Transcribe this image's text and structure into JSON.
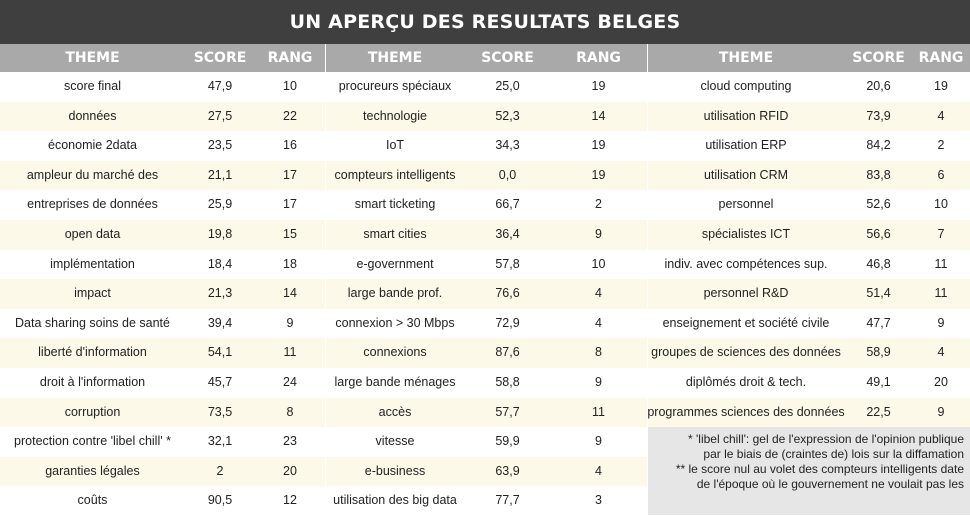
{
  "title": "UN APERÇU DES RESULTATS BELGES",
  "headers": {
    "theme": "THEME",
    "score": "SCORE",
    "rang": "RANG"
  },
  "colors": {
    "title_bg": "#3f3f3f",
    "header_bg": "#a9a9a9",
    "row_alt": "#fdf9e8",
    "note_bg": "#e6e6e6"
  },
  "columns": [
    [
      {
        "theme": "score final",
        "score": "47,9",
        "rang": "10"
      },
      {
        "theme": "données",
        "score": "27,5",
        "rang": "22"
      },
      {
        "theme": "économie 2data",
        "score": "23,5",
        "rang": "16"
      },
      {
        "theme": "ampleur du marché des",
        "score": "21,1",
        "rang": "17"
      },
      {
        "theme": "entreprises de données",
        "score": "25,9",
        "rang": "17"
      },
      {
        "theme": "open data",
        "score": "19,8",
        "rang": "15"
      },
      {
        "theme": "implémentation",
        "score": "18,4",
        "rang": "18"
      },
      {
        "theme": "impact",
        "score": "21,3",
        "rang": "14"
      },
      {
        "theme": "Data sharing soins de santé",
        "score": "39,4",
        "rang": "9"
      },
      {
        "theme": "liberté d'information",
        "score": "54,1",
        "rang": "11"
      },
      {
        "theme": "droit à l'information",
        "score": "45,7",
        "rang": "24"
      },
      {
        "theme": "corruption",
        "score": "73,5",
        "rang": "8"
      },
      {
        "theme": "protection contre 'libel chill' *",
        "score": "32,1",
        "rang": "23"
      },
      {
        "theme": "garanties légales",
        "score": "2",
        "rang": "20"
      },
      {
        "theme": "coûts",
        "score": "90,5",
        "rang": "12"
      }
    ],
    [
      {
        "theme": "procureurs spéciaux",
        "score": "25,0",
        "rang": "19"
      },
      {
        "theme": "technologie",
        "score": "52,3",
        "rang": "14"
      },
      {
        "theme": "IoT",
        "score": "34,3",
        "rang": "19"
      },
      {
        "theme": "compteurs intelligents",
        "score": "0,0",
        "rang": "19"
      },
      {
        "theme": "smart ticketing",
        "score": "66,7",
        "rang": "2"
      },
      {
        "theme": "smart cities",
        "score": "36,4",
        "rang": "9"
      },
      {
        "theme": "e-government",
        "score": "57,8",
        "rang": "10"
      },
      {
        "theme": "large bande prof.",
        "score": "76,6",
        "rang": "4"
      },
      {
        "theme": "connexion > 30 Mbps",
        "score": "72,9",
        "rang": "4"
      },
      {
        "theme": "connexions",
        "score": "87,6",
        "rang": "8"
      },
      {
        "theme": "large bande ménages",
        "score": "58,8",
        "rang": "9"
      },
      {
        "theme": "accès",
        "score": "57,7",
        "rang": "11"
      },
      {
        "theme": "vitesse",
        "score": "59,9",
        "rang": "9"
      },
      {
        "theme": "e-business",
        "score": "63,9",
        "rang": "4"
      },
      {
        "theme": "utilisation des big data",
        "score": "77,7",
        "rang": "3"
      }
    ],
    [
      {
        "theme": "cloud computing",
        "score": "20,6",
        "rang": "19"
      },
      {
        "theme": "utilisation RFID",
        "score": "73,9",
        "rang": "4"
      },
      {
        "theme": "utilisation ERP",
        "score": "84,2",
        "rang": "2"
      },
      {
        "theme": "utilisation CRM",
        "score": "83,8",
        "rang": "6"
      },
      {
        "theme": "personnel",
        "score": "52,6",
        "rang": "10"
      },
      {
        "theme": "spécialistes ICT",
        "score": "56,6",
        "rang": "7"
      },
      {
        "theme": "indiv. avec compétences sup.",
        "score": "46,8",
        "rang": "11"
      },
      {
        "theme": "personnel R&D",
        "score": "51,4",
        "rang": "11"
      },
      {
        "theme": "enseignement et société civile",
        "score": "47,7",
        "rang": "9"
      },
      {
        "theme": "groupes de sciences des données",
        "score": "58,9",
        "rang": "4"
      },
      {
        "theme": "diplômés droit & tech.",
        "score": "49,1",
        "rang": "20"
      },
      {
        "theme": "programmes sciences des données",
        "score": "22,5",
        "rang": "9"
      }
    ]
  ],
  "footnotes": [
    "* 'libel chill': gel de l'expression de l'opinion publique",
    "par le biais de (craintes de) lois sur la diffamation",
    "** le score nul au volet des compteurs intelligents date",
    "de l'époque où le gouvernement ne voulait pas les"
  ]
}
